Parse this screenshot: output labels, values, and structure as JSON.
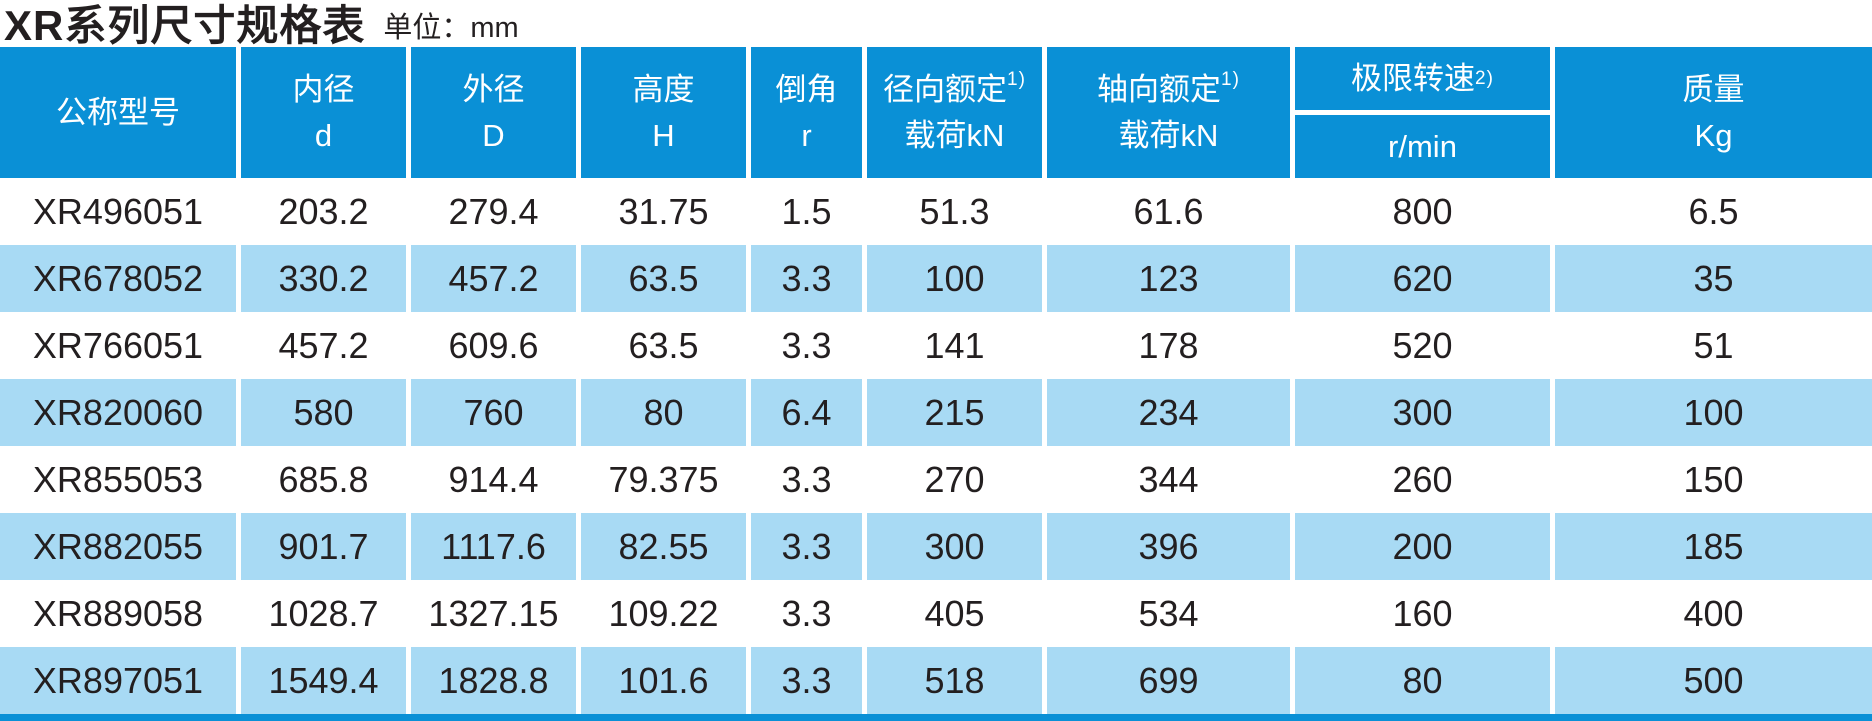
{
  "page": {
    "title": "XR系列尺寸规格表",
    "unit_label": "单位：mm"
  },
  "colors": {
    "header_blue": "#0a90d6",
    "row_blue": "#a8daf4",
    "text_dark": "#231f20"
  },
  "table": {
    "columns": [
      {
        "id": "model",
        "line1": "公称型号",
        "sup": "",
        "line2": ""
      },
      {
        "id": "inner-diameter",
        "line1": "内径",
        "sup": "",
        "line2": "d"
      },
      {
        "id": "outer-diameter",
        "line1": "外径",
        "sup": "",
        "line2": "D"
      },
      {
        "id": "height",
        "line1": "高度",
        "sup": "",
        "line2": "H"
      },
      {
        "id": "chamfer",
        "line1": "倒角",
        "sup": "",
        "line2": "r"
      },
      {
        "id": "radial-load",
        "line1": "径向额定",
        "sup": "1)",
        "line2": "载荷kN"
      },
      {
        "id": "axial-load",
        "line1": "轴向额定",
        "sup": "1)",
        "line2": "载荷kN"
      },
      {
        "id": "limit-speed",
        "line1": "极限转速",
        "sup": "2)",
        "line2": "r/min"
      },
      {
        "id": "mass",
        "line1": "质量",
        "sup": "",
        "line2": "Kg"
      }
    ],
    "rows": [
      [
        "XR496051",
        "203.2",
        "279.4",
        "31.75",
        "1.5",
        "51.3",
        "61.6",
        "800",
        "6.5"
      ],
      [
        "XR678052",
        "330.2",
        "457.2",
        "63.5",
        "3.3",
        "100",
        "123",
        "620",
        "35"
      ],
      [
        "XR766051",
        "457.2",
        "609.6",
        "63.5",
        "3.3",
        "141",
        "178",
        "520",
        "51"
      ],
      [
        "XR820060",
        "580",
        "760",
        "80",
        "6.4",
        "215",
        "234",
        "300",
        "100"
      ],
      [
        "XR855053",
        "685.8",
        "914.4",
        "79.375",
        "3.3",
        "270",
        "344",
        "260",
        "150"
      ],
      [
        "XR882055",
        "901.7",
        "1117.6",
        "82.55",
        "3.3",
        "300",
        "396",
        "200",
        "185"
      ],
      [
        "XR889058",
        "1028.7",
        "1327.15",
        "109.22",
        "3.3",
        "405",
        "534",
        "160",
        "400"
      ],
      [
        "XR897051",
        "1549.4",
        "1828.8",
        "101.6",
        "3.3",
        "518",
        "699",
        "80",
        "500"
      ]
    ]
  }
}
